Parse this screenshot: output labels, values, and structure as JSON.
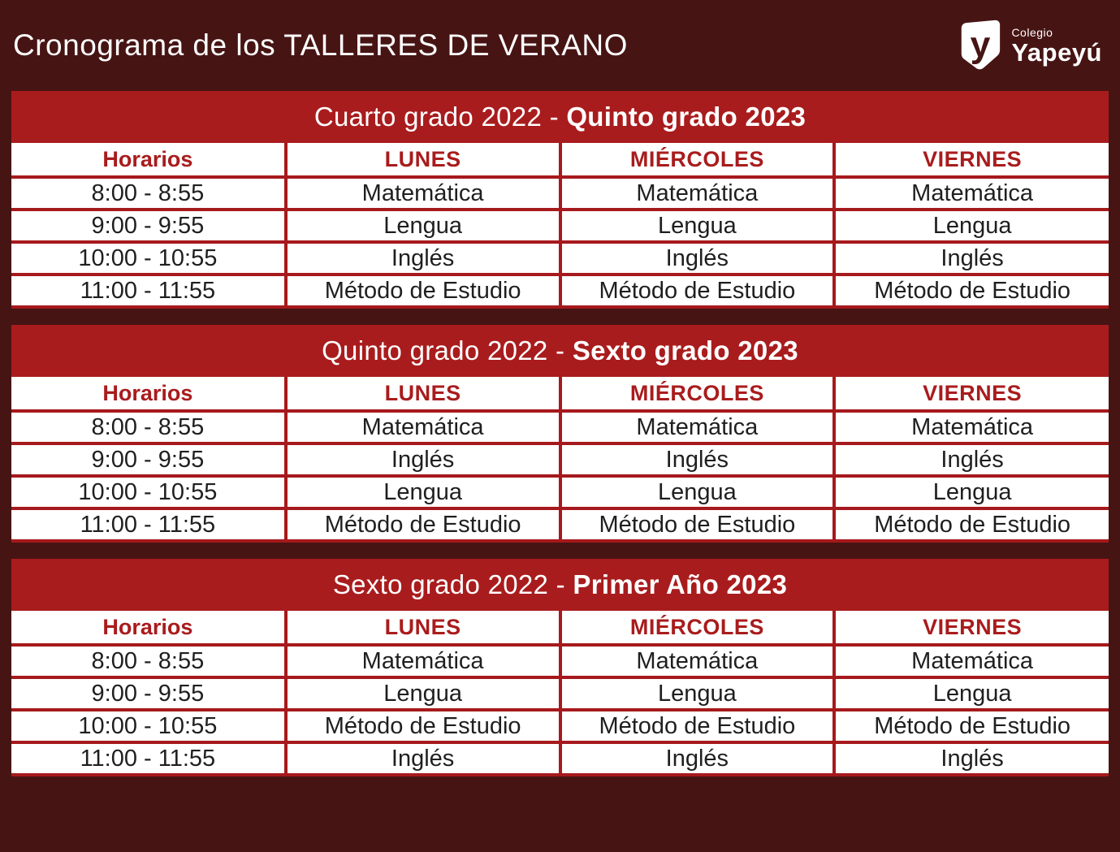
{
  "header": {
    "title": "Cronograma de los TALLERES DE VERANO",
    "logo": {
      "college_label": "Colegio",
      "college_name": "Yapeyú",
      "monogram_letter": "y"
    }
  },
  "columns": {
    "time": "Horarios",
    "days": [
      "LUNES",
      "MIÉRCOLES",
      "VIERNES"
    ]
  },
  "tables": [
    {
      "title_regular": "Cuarto grado 2022 -",
      "title_bold": "Quinto grado 2023",
      "rows": [
        {
          "time": "8:00 - 8:55",
          "subjects": [
            "Matemática",
            "Matemática",
            "Matemática"
          ]
        },
        {
          "time": "9:00 - 9:55",
          "subjects": [
            "Lengua",
            "Lengua",
            "Lengua"
          ]
        },
        {
          "time": "10:00 - 10:55",
          "subjects": [
            "Inglés",
            "Inglés",
            "Inglés"
          ]
        },
        {
          "time": "11:00 - 11:55",
          "subjects": [
            "Método de Estudio",
            "Método de Estudio",
            "Método de Estudio"
          ]
        }
      ]
    },
    {
      "title_regular": "Quinto grado 2022 -",
      "title_bold": "Sexto grado 2023",
      "rows": [
        {
          "time": "8:00 - 8:55",
          "subjects": [
            "Matemática",
            "Matemática",
            "Matemática"
          ]
        },
        {
          "time": "9:00 - 9:55",
          "subjects": [
            "Inglés",
            "Inglés",
            "Inglés"
          ]
        },
        {
          "time": "10:00 - 10:55",
          "subjects": [
            "Lengua",
            "Lengua",
            "Lengua"
          ]
        },
        {
          "time": "11:00 - 11:55",
          "subjects": [
            "Método de Estudio",
            "Método de Estudio",
            "Método de Estudio"
          ]
        }
      ]
    },
    {
      "title_regular": "Sexto grado 2022 -",
      "title_bold": "Primer Año 2023",
      "rows": [
        {
          "time": "8:00 - 8:55",
          "subjects": [
            "Matemática",
            "Matemática",
            "Matemática"
          ]
        },
        {
          "time": "9:00 - 9:55",
          "subjects": [
            "Lengua",
            "Lengua",
            "Lengua"
          ]
        },
        {
          "time": "10:00 - 10:55",
          "subjects": [
            "Método de Estudio",
            "Método de Estudio",
            "Método de Estudio"
          ]
        },
        {
          "time": "11:00 - 11:55",
          "subjects": [
            "Inglés",
            "Inglés",
            "Inglés"
          ]
        }
      ]
    }
  ],
  "colors": {
    "background_maroon": "#471414",
    "band_red": "#a91c1d",
    "border_red": "#a6191c",
    "header_text_red": "#a91c1d",
    "body_text": "#1f1f1f",
    "white": "#ffffff"
  }
}
